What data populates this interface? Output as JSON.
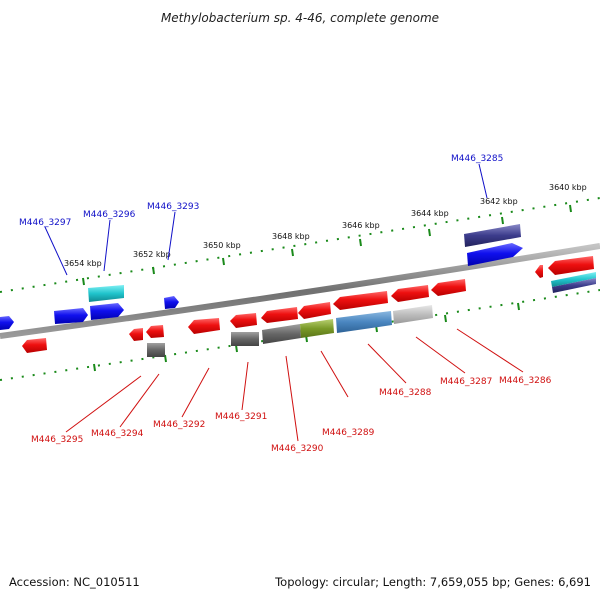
{
  "title": "Methylobacterium sp. 4-46, complete genome",
  "accession": "Accession: NC_010511",
  "topology": "Topology: circular; Length: 7,659,055 bp; Genes: 6,691",
  "scale_labels": [
    "3654 kbp",
    "3652 kbp",
    "3650 kbp",
    "3648 kbp",
    "3646 kbp",
    "3644 kbp",
    "3642 kbp",
    "3640 kbp"
  ],
  "forward_gene_labels": [
    "M446_3297",
    "M446_3296",
    "M446_3293",
    "M446_3285"
  ],
  "reverse_gene_labels": [
    "M446_3295",
    "M446_3294",
    "M446_3292",
    "M446_3291",
    "M446_3290",
    "M446_3289",
    "M446_3288",
    "M446_3287",
    "M446_3286"
  ],
  "colors": {
    "forward": "#1010e8",
    "reverse": "#e81010",
    "cyan": "#20c8d0",
    "navy": "#3c3c8c",
    "gray": "#686868",
    "olive": "#7a9a28",
    "steel": "#4a86c0",
    "light_gray": "#b8b8b8",
    "backbone": "#7a7a7a",
    "ticks": "#1a8a1a"
  }
}
